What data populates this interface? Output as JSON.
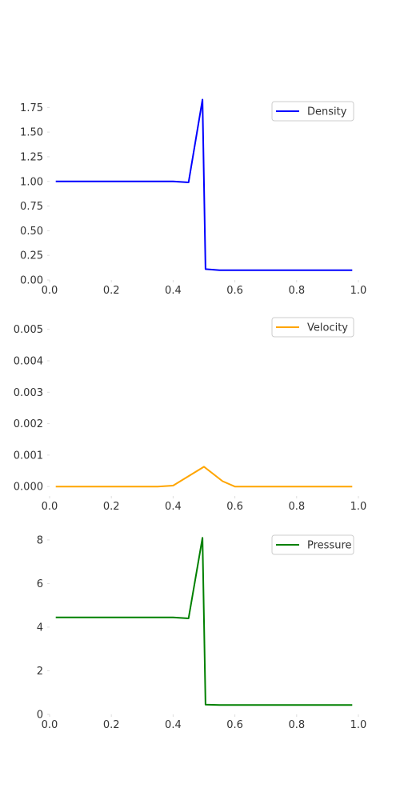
{
  "chart_data": [
    {
      "type": "line",
      "title": "",
      "xlabel": "",
      "ylabel": "",
      "xlim": [
        0.0,
        1.0
      ],
      "ylim": [
        0.0,
        1.85
      ],
      "grid": false,
      "legend_position": "top-right",
      "x_ticks": [
        "0.0",
        "0.2",
        "0.4",
        "0.6",
        "0.8",
        "1.0"
      ],
      "y_ticks": [
        "0.00",
        "0.25",
        "0.50",
        "0.75",
        "1.00",
        "1.25",
        "1.50",
        "1.75"
      ],
      "series": [
        {
          "name": "Density",
          "color": "#0000ff",
          "x": [
            0.02,
            0.4,
            0.45,
            0.495,
            0.505,
            0.55,
            0.98
          ],
          "y": [
            1.0,
            1.0,
            0.99,
            1.83,
            0.11,
            0.1,
            0.1
          ]
        }
      ]
    },
    {
      "type": "line",
      "title": "",
      "xlabel": "",
      "ylabel": "",
      "xlim": [
        0.0,
        1.0
      ],
      "ylim": [
        -0.0003,
        0.0055
      ],
      "grid": false,
      "legend_position": "top-right",
      "x_ticks": [
        "0.0",
        "0.2",
        "0.4",
        "0.6",
        "0.8",
        "1.0"
      ],
      "y_ticks": [
        "0.000",
        "0.001",
        "0.002",
        "0.003",
        "0.004",
        "0.005"
      ],
      "series": [
        {
          "name": "Velocity",
          "color": "#ffa500",
          "x": [
            0.02,
            0.35,
            0.4,
            0.5,
            0.56,
            0.6,
            0.98
          ],
          "y": [
            0.0,
            0.0,
            3e-05,
            0.00063,
            0.00017,
            0.0,
            0.0
          ]
        }
      ]
    },
    {
      "type": "line",
      "title": "",
      "xlabel": "",
      "ylabel": "",
      "xlim": [
        0.0,
        1.0
      ],
      "ylim": [
        0.0,
        8.4
      ],
      "grid": false,
      "legend_position": "top-right",
      "x_ticks": [
        "0.0",
        "0.2",
        "0.4",
        "0.6",
        "0.8",
        "1.0"
      ],
      "y_ticks": [
        "0",
        "2",
        "4",
        "6",
        "8"
      ],
      "series": [
        {
          "name": "Pressure",
          "color": "#008000",
          "x": [
            0.02,
            0.4,
            0.45,
            0.495,
            0.505,
            0.55,
            0.98
          ],
          "y": [
            4.45,
            4.45,
            4.4,
            8.1,
            0.45,
            0.43,
            0.43
          ]
        }
      ]
    }
  ]
}
